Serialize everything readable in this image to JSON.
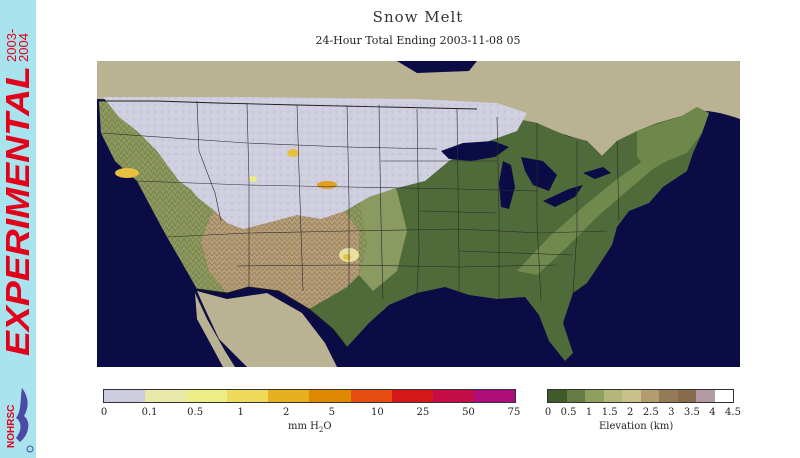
{
  "title": "Snow Melt",
  "subtitle": "24-Hour Total Ending 2003-11-08 05",
  "sidebar": {
    "years_top": "2003-",
    "years_bottom": "2004",
    "experimental": "EXPERIMENTAL",
    "logo_text": "NOHRSC",
    "brand_color": "#e3001b",
    "background_color": "#a9e4ee"
  },
  "map": {
    "water_color": "#0b0b45",
    "land_outside_color": "#b9b293",
    "snow_covered_color": "#ccccdd",
    "lowland_color": "#4f6b3a"
  },
  "snow_legend": {
    "unit_prefix": "mm H",
    "unit_sub": "2",
    "unit_suffix": "O",
    "ticks": [
      "0",
      "0.1",
      "0.5",
      "1",
      "2",
      "5",
      "10",
      "25",
      "50",
      "75"
    ],
    "colors": [
      "#cccce0",
      "#e8e8a8",
      "#eded86",
      "#efd95a",
      "#e6b020",
      "#e08800",
      "#e44c10",
      "#d41818",
      "#c40c48",
      "#ae0c78"
    ]
  },
  "elevation_legend": {
    "unit": "Elevation (km)",
    "ticks": [
      "0",
      "0.5",
      "1",
      "1.5",
      "2",
      "2.5",
      "3",
      "3.5",
      "4",
      "4.5"
    ],
    "colors": [
      "#3f5b2c",
      "#667c44",
      "#8ea05c",
      "#b3b87a",
      "#c9c18a",
      "#b29c6e",
      "#957a58",
      "#8a6a4c",
      "#b49aa4",
      "#ffffff"
    ]
  }
}
